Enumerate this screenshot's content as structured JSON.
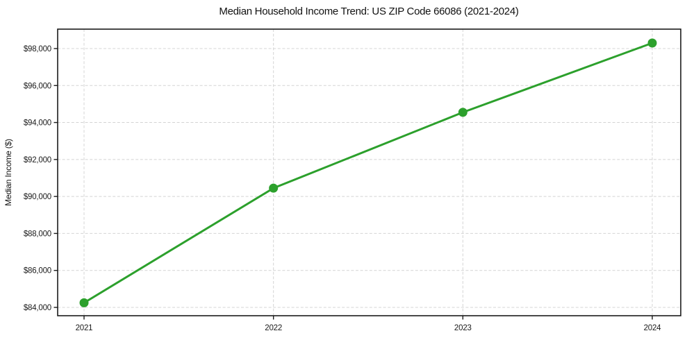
{
  "chart_data": {
    "type": "line",
    "title": "Median Household Income Trend: US ZIP Code 66086 (2021-2024)",
    "xlabel": "",
    "ylabel": "Median Income ($)",
    "categories": [
      "2021",
      "2022",
      "2023",
      "2024"
    ],
    "series": [
      {
        "values": [
          84250,
          90450,
          94550,
          98300
        ],
        "color": "#2ca02c",
        "marker": "circle",
        "marker_radius": 6.5,
        "line_width": 3
      }
    ],
    "yticks": [
      84000,
      86000,
      88000,
      90000,
      92000,
      94000,
      96000,
      98000
    ],
    "ytick_labels": [
      "$84,000",
      "$86,000",
      "$88,000",
      "$90,000",
      "$92,000",
      "$94,000",
      "$96,000",
      "$98,000"
    ],
    "ylim": [
      83550,
      99050
    ],
    "grid": true,
    "grid_color": "#d4d4d4",
    "axis_color": "#1a1a1a",
    "background_color": "#ffffff",
    "legend": "none"
  }
}
